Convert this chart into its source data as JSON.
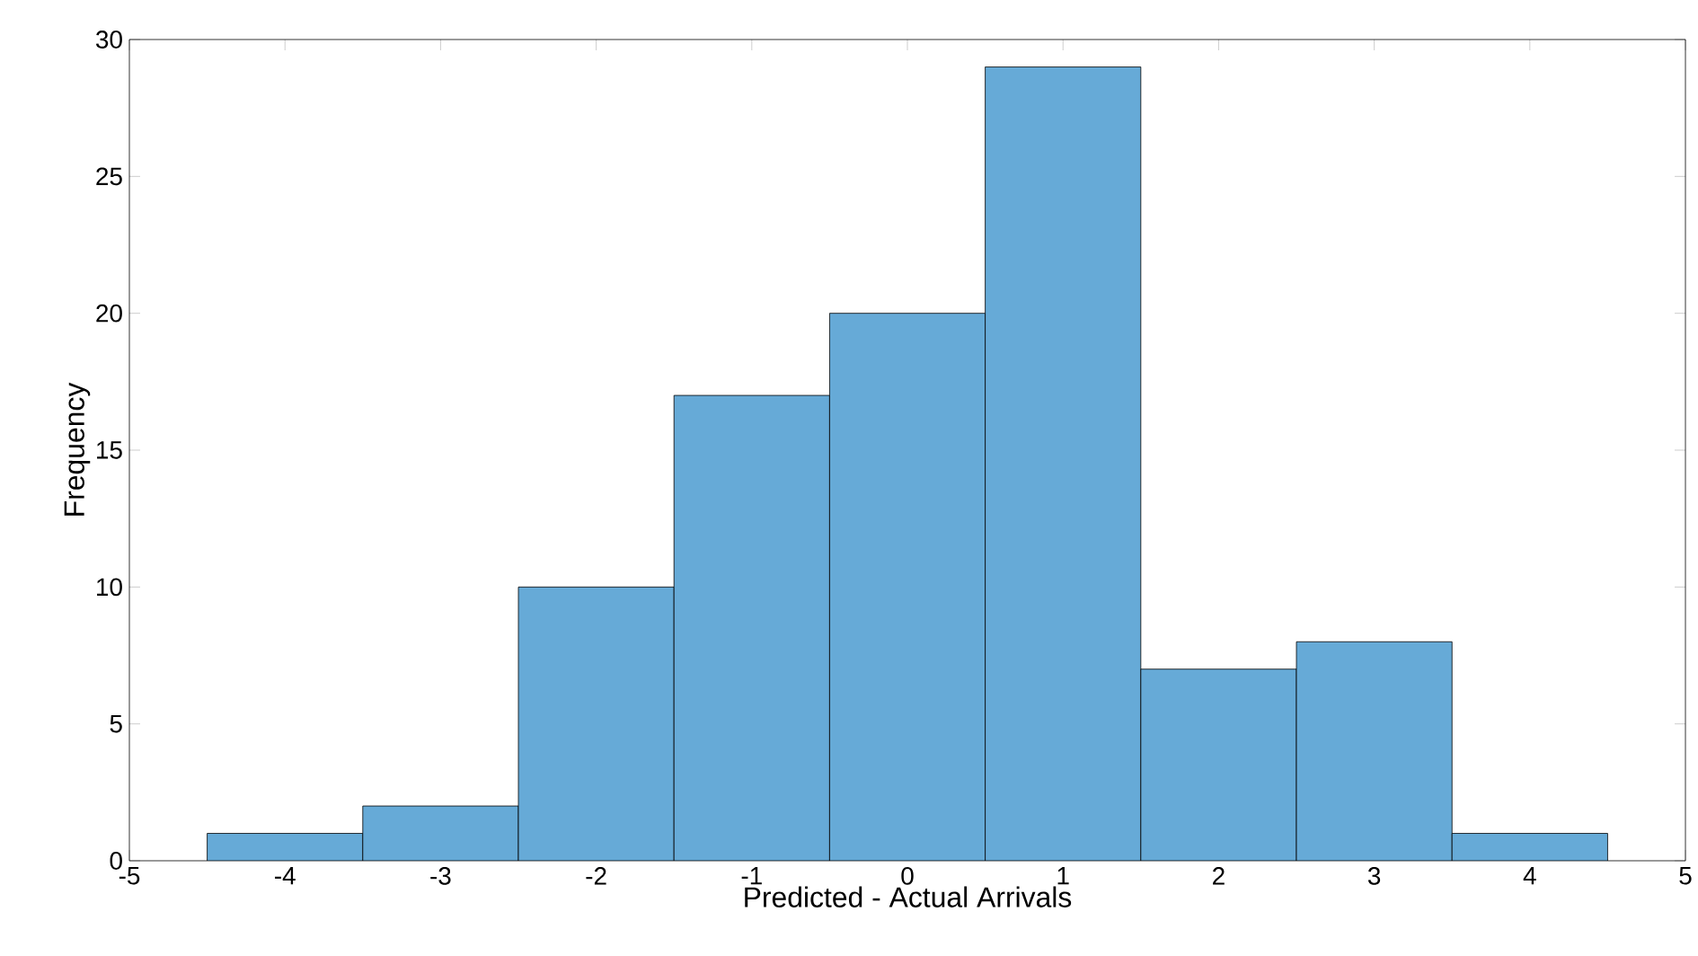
{
  "chart_data": {
    "type": "histogram",
    "xlabel": "Predicted - Actual Arrivals",
    "ylabel": "Frequency",
    "bins": [
      -4.5,
      -3.5,
      -2.5,
      -1.5,
      -0.5,
      0.5,
      1.5,
      2.5,
      3.5,
      4.5
    ],
    "values": [
      1,
      2,
      10,
      17,
      20,
      29,
      7,
      8,
      1
    ],
    "color": "#66aad7",
    "xlim": [
      -5,
      5
    ],
    "xticks": [
      -5,
      -4,
      -3,
      -2,
      -1,
      0,
      1,
      2,
      3,
      4,
      5
    ],
    "ylim": [
      0,
      30
    ],
    "yticks": [
      0,
      5,
      10,
      15,
      20,
      25,
      30
    ]
  }
}
